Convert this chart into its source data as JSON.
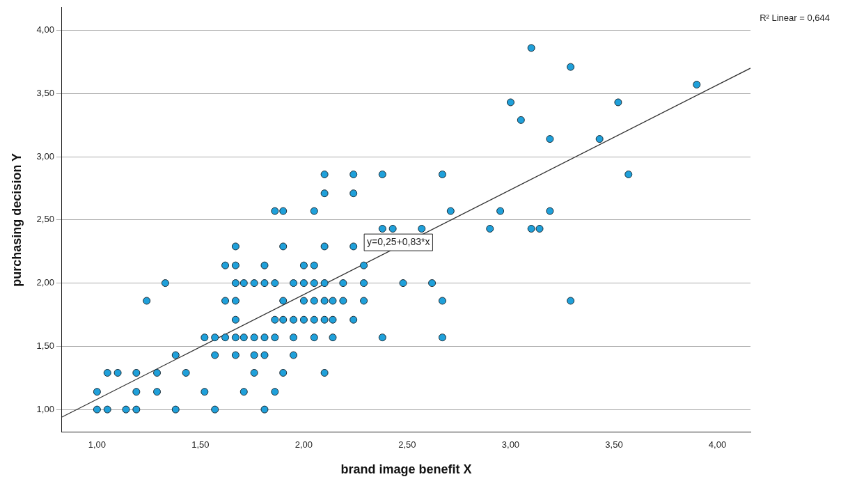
{
  "chart_data": {
    "type": "scatter",
    "xlabel": "brand image benefit X",
    "ylabel": "purchasing decision Y",
    "xlim": [
      0.83,
      4.16
    ],
    "ylim": [
      0.82,
      4.18
    ],
    "xticks": [
      {
        "value": 1,
        "label": "1,00"
      },
      {
        "value": 1.5,
        "label": "1,50"
      },
      {
        "value": 2,
        "label": "2,00"
      },
      {
        "value": 2.5,
        "label": "2,50"
      },
      {
        "value": 3,
        "label": "3,00"
      },
      {
        "value": 3.5,
        "label": "3,50"
      },
      {
        "value": 4,
        "label": "4,00"
      }
    ],
    "yticks": [
      {
        "value": 1,
        "label": "1,00"
      },
      {
        "value": 1.5,
        "label": "1,50"
      },
      {
        "value": 2,
        "label": "2,00"
      },
      {
        "value": 2.5,
        "label": "2,50"
      },
      {
        "value": 3,
        "label": "3,00"
      },
      {
        "value": 3.5,
        "label": "3,50"
      },
      {
        "value": 4,
        "label": "4,00"
      }
    ],
    "grid": "y",
    "legend": false,
    "series": [
      {
        "type": "scatter",
        "marker": "circle",
        "color": "#1fa0da",
        "x": [
          1.0,
          1.05,
          1.14,
          1.19,
          1.38,
          1.57,
          1.81,
          1.0,
          1.19,
          1.29,
          1.52,
          1.71,
          1.86,
          1.05,
          1.1,
          1.19,
          1.29,
          1.43,
          1.76,
          1.9,
          2.1,
          1.38,
          1.57,
          1.67,
          1.76,
          1.81,
          1.95,
          1.52,
          1.57,
          1.62,
          1.67,
          1.71,
          1.76,
          1.81,
          1.86,
          1.95,
          2.05,
          2.14,
          2.38,
          2.67,
          1.67,
          1.86,
          1.9,
          1.95,
          2.0,
          2.05,
          2.1,
          2.14,
          2.24,
          1.24,
          1.62,
          1.67,
          1.9,
          2.0,
          2.05,
          2.1,
          2.14,
          2.19,
          2.29,
          2.67,
          3.29,
          1.33,
          1.67,
          1.71,
          1.76,
          1.81,
          1.86,
          1.95,
          2.0,
          2.05,
          2.1,
          2.19,
          2.29,
          2.48,
          2.62,
          1.62,
          1.67,
          1.81,
          2.0,
          2.05,
          2.29,
          1.67,
          1.9,
          2.1,
          2.24,
          2.38,
          2.43,
          2.57,
          2.9,
          3.1,
          3.14,
          1.86,
          1.9,
          2.05,
          2.71,
          2.95,
          3.19,
          2.1,
          2.24,
          2.1,
          2.24,
          2.38,
          2.67,
          3.57,
          3.19,
          3.43,
          3.05,
          3.0,
          3.52,
          3.9,
          3.29,
          3.1
        ],
        "values": [
          1.0,
          1.0,
          1.0,
          1.0,
          1.0,
          1.0,
          1.0,
          1.14,
          1.14,
          1.14,
          1.14,
          1.14,
          1.14,
          1.29,
          1.29,
          1.29,
          1.29,
          1.29,
          1.29,
          1.29,
          1.29,
          1.43,
          1.43,
          1.43,
          1.43,
          1.43,
          1.43,
          1.57,
          1.57,
          1.57,
          1.57,
          1.57,
          1.57,
          1.57,
          1.57,
          1.57,
          1.57,
          1.57,
          1.57,
          1.57,
          1.71,
          1.71,
          1.71,
          1.71,
          1.71,
          1.71,
          1.71,
          1.71,
          1.71,
          1.86,
          1.86,
          1.86,
          1.86,
          1.86,
          1.86,
          1.86,
          1.86,
          1.86,
          1.86,
          1.86,
          1.86,
          2.0,
          2.0,
          2.0,
          2.0,
          2.0,
          2.0,
          2.0,
          2.0,
          2.0,
          2.0,
          2.0,
          2.0,
          2.0,
          2.0,
          2.14,
          2.14,
          2.14,
          2.14,
          2.14,
          2.14,
          2.29,
          2.29,
          2.29,
          2.29,
          2.43,
          2.43,
          2.43,
          2.43,
          2.43,
          2.43,
          2.57,
          2.57,
          2.57,
          2.57,
          2.57,
          2.57,
          2.71,
          2.71,
          2.86,
          2.86,
          2.86,
          2.86,
          2.86,
          3.14,
          3.14,
          3.29,
          3.43,
          3.43,
          3.57,
          3.71,
          3.86
        ]
      },
      {
        "type": "line",
        "marker": "none",
        "color": "#333333",
        "x": [
          0.83,
          4.16
        ],
        "values": [
          0.94,
          3.7
        ]
      }
    ],
    "annotations": [
      "R² Linear = 0,644",
      "y=0,25+0,83*x"
    ]
  }
}
